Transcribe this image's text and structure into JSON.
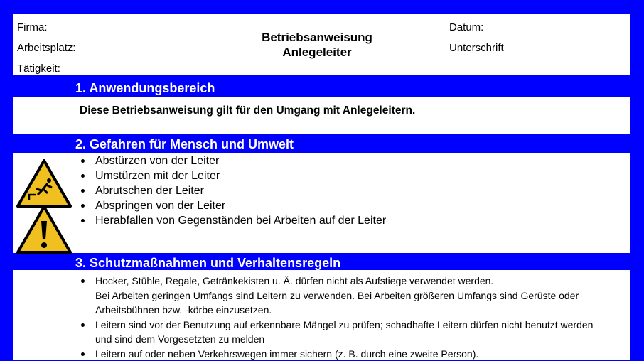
{
  "header": {
    "firma_label": "Firma:",
    "arbeitsplatz_label": "Arbeitsplatz:",
    "taetigkeit_label": "Tätigkeit:",
    "title_line1": "Betriebsanweisung",
    "title_line2": "Anlegeleiter",
    "datum_label": "Datum:",
    "unterschrift_label": "Unterschrift"
  },
  "sections": [
    {
      "title": "1. Anwendungsbereich",
      "text": "Diese Betriebsanweisung gilt für den Umgang mit Anlegeleitern."
    },
    {
      "title": "2. Gefahren für Mensch und Umwelt",
      "items": [
        "Abstürzen von der Leiter",
        "Umstürzen mit der Leiter",
        "Abrutschen der Leiter",
        "Abspringen von der Leiter",
        "Herabfallen von Gegenständen bei Arbeiten auf der Leiter"
      ],
      "icons": [
        "fall-hazard-warning-icon",
        "general-warning-icon"
      ]
    },
    {
      "title": "3. Schutzmaßnahmen und Verhaltensregeln",
      "items": [
        {
          "line1": "Hocker, Stühle, Regale, Getränkekisten u. Ä. dürfen nicht als Aufstiege verwendet werden.",
          "line2": "Bei Arbeiten geringen Umfangs sind Leitern zu verwenden. Bei Arbeiten größeren Umfangs sind Gerüste oder",
          "line3": "Arbeitsbühnen bzw. -körbe einzusetzen."
        },
        {
          "line1": "Leitern sind vor der Benutzung auf erkennbare Mängel zu prüfen; schadhafte Leitern dürfen nicht benutzt werden",
          "line2": "und sind dem Vorgesetzten zu melden"
        },
        {
          "line1": "Leitern auf oder neben Verkehrswegen immer sichern (z. B. durch eine zweite Person)."
        }
      ]
    }
  ],
  "colors": {
    "band": "#0000ff",
    "warning_yellow": "#f0c020"
  }
}
